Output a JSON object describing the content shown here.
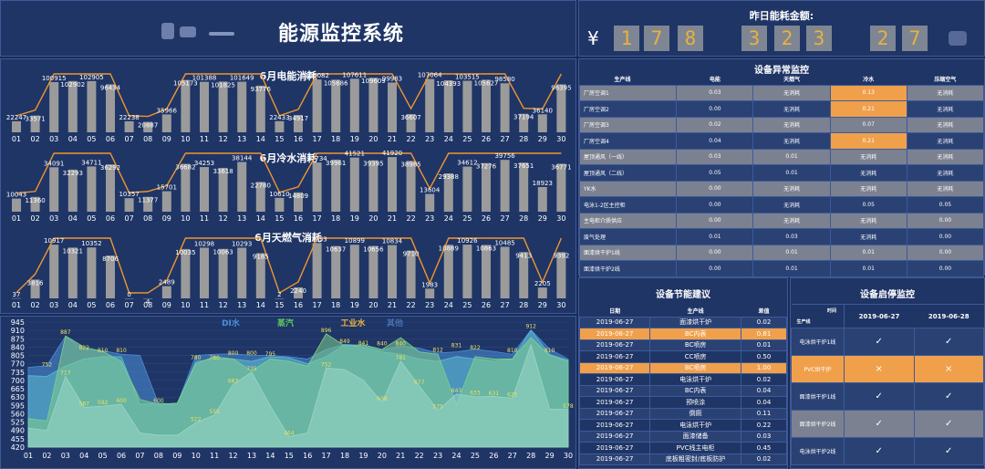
{
  "header": {
    "title": "能源监控系统"
  },
  "amount": {
    "title": "昨日能耗金额:",
    "currency": "¥",
    "digits": [
      "1",
      "7",
      "8",
      "3",
      "2",
      "3",
      "2",
      "7"
    ],
    "trail_icon": "blurred-mark"
  },
  "days": [
    "01",
    "02",
    "03",
    "04",
    "05",
    "06",
    "07",
    "08",
    "09",
    "10",
    "11",
    "12",
    "13",
    "14",
    "15",
    "16",
    "17",
    "18",
    "19",
    "20",
    "21",
    "22",
    "23",
    "24",
    "25",
    "26",
    "27",
    "28",
    "29",
    "30"
  ],
  "electric": {
    "title": "6月电能消耗",
    "values": [
      22247,
      33571,
      100915,
      102902,
      102905,
      96434,
      22238,
      20887,
      35966,
      105173,
      101388,
      101825,
      101649,
      93776,
      22433,
      34917,
      106082,
      105686,
      107611,
      109609,
      99983,
      36607,
      107064,
      104393,
      103515,
      105627,
      98580,
      37194,
      36140,
      96395
    ]
  },
  "water": {
    "title": "6月冷水消耗",
    "values": [
      10043,
      11360,
      34091,
      32293,
      34711,
      36292,
      10357,
      11377,
      15701,
      36682,
      34253,
      33618,
      38144,
      22780,
      10610,
      14809,
      37734,
      39961,
      41521,
      39395,
      41920,
      38985,
      13604,
      29388,
      34612,
      37276,
      39756,
      37651,
      18923,
      36771
    ]
  },
  "gas": {
    "title": "6月天燃气消耗",
    "values": [
      37,
      3816,
      10917,
      10321,
      10352,
      8706,
      0,
      4,
      2489,
      10035,
      10298,
      10063,
      10293,
      9185,
      2,
      2240,
      11253,
      10637,
      10899,
      10656,
      10834,
      9710,
      1983,
      10889,
      10926,
      10863,
      10485,
      9413,
      2205,
      9392
    ]
  },
  "area": {
    "legend": [
      "DI水",
      "蒸汽",
      "工业水",
      "其他"
    ],
    "yticks": [
      945,
      910,
      875,
      840,
      805,
      770,
      735,
      700,
      665,
      630,
      595,
      560,
      525,
      490,
      455,
      420
    ],
    "ymin": 420,
    "ymax": 945,
    "series": [
      {
        "color": "#4a8fd8",
        "values": [
          755,
          762,
          885,
          830,
          825,
          810,
          805,
          600,
          600,
          805,
          810,
          812,
          805,
          805,
          800,
          790,
          830,
          852,
          847,
          828,
          845,
          835,
          815,
          820,
          831,
          822,
          810,
          912,
          832,
          790
        ]
      },
      {
        "color": "#5dbbd0",
        "values": [
          720,
          717,
          760,
          790,
          800,
          800,
          600,
          605,
          600,
          780,
          790,
          790,
          780,
          800,
          795,
          770,
          800,
          850,
          840,
          820,
          810,
          790,
          780,
          800,
          790,
          780,
          790,
          910,
          810,
          785
        ]
      },
      {
        "color": "#7fd08c",
        "values": [
          540,
          530,
          887,
          840,
          822,
          780,
          620,
          600,
          605,
          770,
          800,
          790,
          740,
          790,
          780,
          760,
          896,
          845,
          850,
          830,
          880,
          820,
          810,
          600,
          800,
          790,
          790,
          880,
          805,
          780
        ]
      },
      {
        "color": "#9bd6c8",
        "values": [
          500,
          490,
          717,
          587,
          592,
          600,
          480,
          470,
          470,
          522,
          555,
          683,
          735,
          592,
          464,
          480,
          752,
          745,
          700,
          608,
          781,
          677,
          575,
          643,
          631,
          633,
          625,
          850,
          580,
          578
        ]
      }
    ],
    "labels": [
      {
        "i": 2,
        "v": "887"
      },
      {
        "i": 3,
        "v": "822"
      },
      {
        "i": 4,
        "v": "810"
      },
      {
        "i": 5,
        "v": "810"
      },
      {
        "i": 1,
        "v": "752"
      },
      {
        "i": 2,
        "v": "717"
      },
      {
        "i": 3,
        "v": "587"
      },
      {
        "i": 4,
        "v": "592"
      },
      {
        "i": 5,
        "v": "600"
      },
      {
        "i": 9,
        "v": "780"
      },
      {
        "i": 10,
        "v": "780"
      },
      {
        "i": 11,
        "v": "800"
      },
      {
        "i": 12,
        "v": "800"
      },
      {
        "i": 13,
        "v": "795"
      },
      {
        "i": 11,
        "v": "683"
      },
      {
        "i": 12,
        "v": "735"
      },
      {
        "i": 9,
        "v": "522"
      },
      {
        "i": 10,
        "v": "555"
      },
      {
        "i": 16,
        "v": "896"
      },
      {
        "i": 17,
        "v": "849"
      },
      {
        "i": 18,
        "v": "841"
      },
      {
        "i": 19,
        "v": "840"
      },
      {
        "i": 20,
        "v": "840"
      },
      {
        "i": 16,
        "v": "752"
      },
      {
        "i": 20,
        "v": "781"
      },
      {
        "i": 21,
        "v": "677"
      },
      {
        "i": 19,
        "v": "608"
      },
      {
        "i": 22,
        "v": "812"
      },
      {
        "i": 23,
        "v": "831"
      },
      {
        "i": 24,
        "v": "822"
      },
      {
        "i": 26,
        "v": "810"
      },
      {
        "i": 27,
        "v": "912"
      },
      {
        "i": 28,
        "v": "810"
      },
      {
        "i": 22,
        "v": "575"
      },
      {
        "i": 23,
        "v": "643"
      },
      {
        "i": 24,
        "v": "633"
      },
      {
        "i": 25,
        "v": "631"
      },
      {
        "i": 26,
        "v": "625"
      },
      {
        "i": 29,
        "v": "578"
      },
      {
        "i": 14,
        "v": "464"
      },
      {
        "i": 7,
        "v": "600"
      }
    ]
  },
  "anomaly": {
    "title": "设备异常监控",
    "headers": [
      "生产线",
      "电能",
      "天燃气",
      "冷水",
      "压缩空气"
    ],
    "rows": [
      [
        "厂房空调1",
        "0.03",
        "无消耗",
        "0.13",
        "无消耗"
      ],
      [
        "厂房空调2",
        "0.00",
        "无消耗",
        "0.21",
        "无消耗"
      ],
      [
        "厂房空调3",
        "0.02",
        "无消耗",
        "0.07",
        "无消耗"
      ],
      [
        "厂房空调4",
        "0.04",
        "无消耗",
        "0.21",
        "无消耗"
      ],
      [
        "屋顶通风（一线）",
        "0.03",
        "0.01",
        "无消耗",
        "无消耗"
      ],
      [
        "屋顶通风（二线）",
        "0.05",
        "0.01",
        "无消耗",
        "无消耗"
      ],
      [
        "YK水",
        "0.00",
        "无消耗",
        "无消耗",
        "无消耗"
      ],
      [
        "电泳1-2区主控柜",
        "0.00",
        "无消耗",
        "0.05",
        "0.05"
      ],
      [
        "主电柜介质供应",
        "0.00",
        "无消耗",
        "无消耗",
        "0.00"
      ],
      [
        "废气处理",
        "0.01",
        "0.03",
        "无消耗",
        "0.00"
      ],
      [
        "面漆烘干炉1线",
        "0.00",
        "0.01",
        "0.01",
        "0.00"
      ],
      [
        "面漆烘干炉2线",
        "0.00",
        "0.01",
        "0.01",
        "0.00"
      ]
    ],
    "highlight": [
      [
        0,
        3
      ],
      [
        1,
        3
      ],
      [
        3,
        3
      ]
    ]
  },
  "advice": {
    "title": "设备节能建议",
    "headers": [
      "日期",
      "生产线",
      "差值"
    ],
    "rows": [
      [
        "2019-06-27",
        "面漆烘干炉",
        "0.02"
      ],
      [
        "2019-06-27",
        "BC内表",
        "0.81"
      ],
      [
        "2019-06-27",
        "BC喷房",
        "0.01"
      ],
      [
        "2019-06-27",
        "CC喷房",
        "0.50"
      ],
      [
        "2019-06-27",
        "BC喷房",
        "1.00"
      ],
      [
        "2019-06-27",
        "电泳烘干炉",
        "0.02"
      ],
      [
        "2019-06-27",
        "BC内表",
        "0.04"
      ],
      [
        "2019-06-27",
        "预喷涂",
        "0.04"
      ],
      [
        "2019-06-27",
        "倒厕",
        "0.11"
      ],
      [
        "2019-06-27",
        "电泳烘干炉",
        "0.22"
      ],
      [
        "2019-06-27",
        "面漆储备",
        "0.03"
      ],
      [
        "2019-06-27",
        "PVC线主电柜",
        "0.45"
      ],
      [
        "2019-06-27",
        "底板粗密封/底板防护",
        "0.02"
      ]
    ],
    "highlight_rows": [
      1,
      4
    ]
  },
  "startstop": {
    "title": "设备启停监控",
    "corner_top": "时间",
    "corner_bottom": "生产线",
    "dates": [
      "2019-06-27",
      "2019-06-28"
    ],
    "rows": [
      {
        "name": "电泳烘干炉1线",
        "marks": [
          "✓",
          "✓"
        ],
        "alert": false
      },
      {
        "name": "PVC烘干炉",
        "marks": [
          "×",
          "×"
        ],
        "alert": true
      },
      {
        "name": "面漆烘干炉1线",
        "marks": [
          "✓",
          "✓"
        ],
        "alert": false
      },
      {
        "name": "面漆烘干炉2线",
        "marks": [
          "✓",
          "✓"
        ],
        "alert": false
      },
      {
        "name": "电泳烘干炉2线",
        "marks": [
          "✓",
          "✓"
        ],
        "alert": false
      }
    ]
  }
}
